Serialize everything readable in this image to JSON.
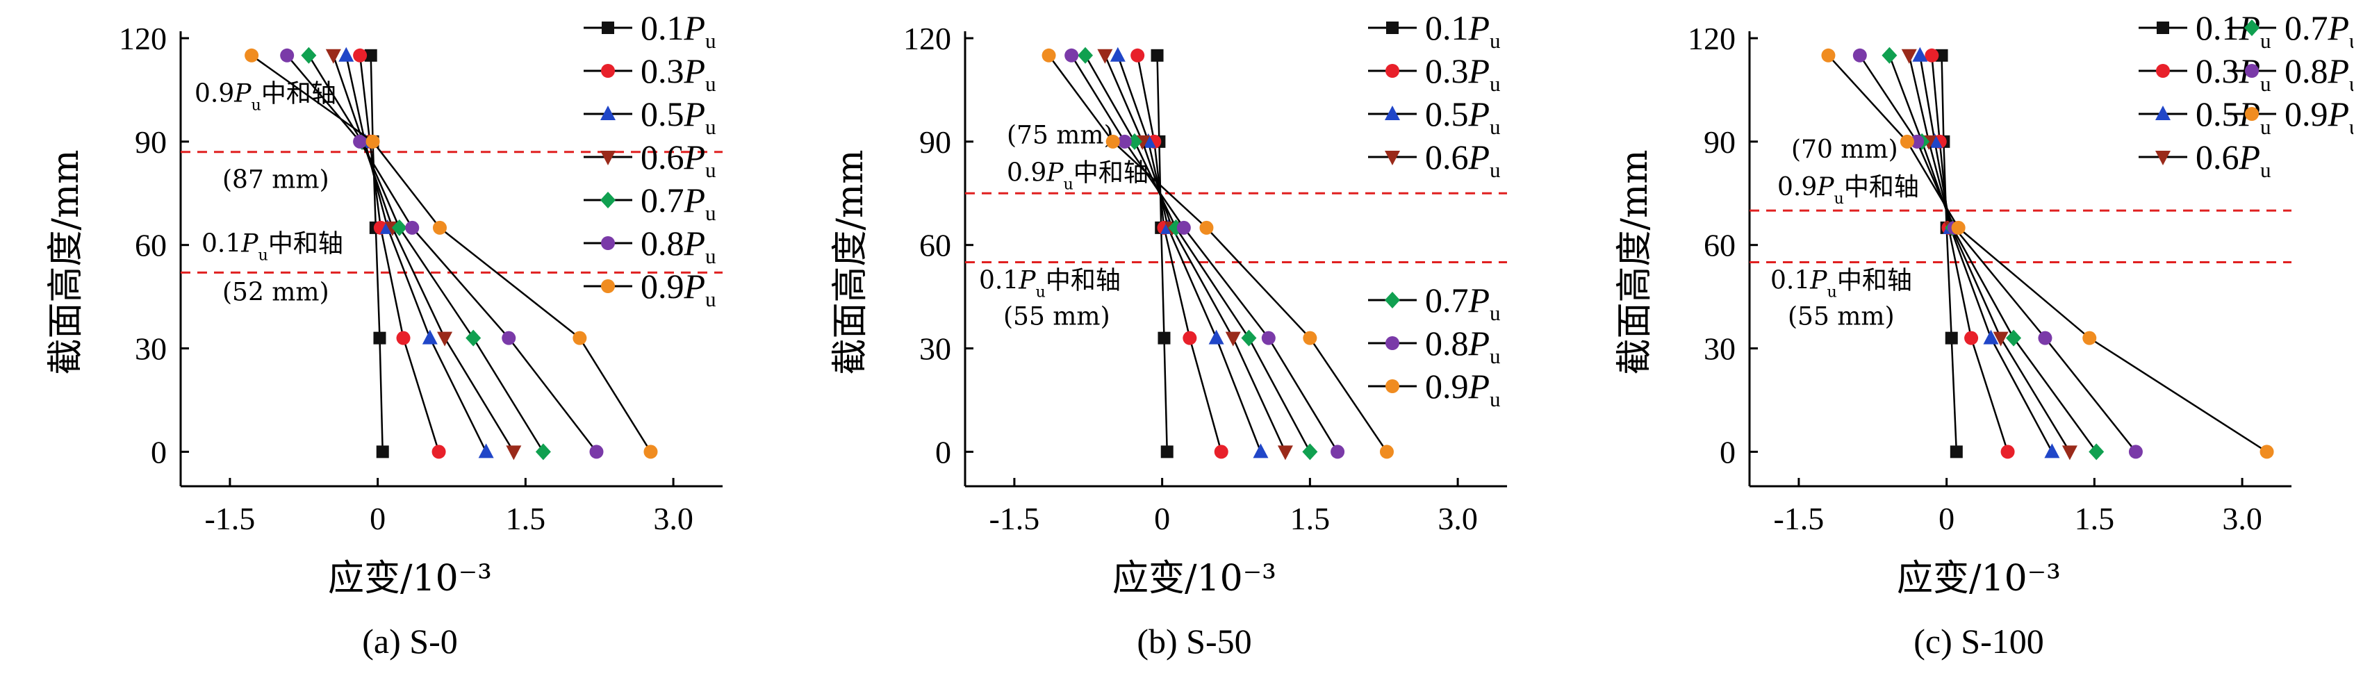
{
  "colors": {
    "0.1": "#111111",
    "0.3": "#e8202a",
    "0.5": "#2046c8",
    "0.6": "#9a2a1a",
    "0.7": "#10a050",
    "0.8": "#7a3aa8",
    "0.9": "#f08c20",
    "refline": "#e02020"
  },
  "chart_data": [
    {
      "id": "a",
      "type": "line",
      "caption": "(a) S-0",
      "xlabel": "应变/10⁻³",
      "ylabel": "截面高度/mm",
      "xlim": [
        -2.0,
        3.5
      ],
      "ylim": [
        -10,
        120
      ],
      "xticks": [
        "-1.5",
        "0",
        "1.5",
        "3.0"
      ],
      "xtick_values": [
        -1.5,
        0,
        1.5,
        3.0
      ],
      "yticks": [
        "0",
        "30",
        "60",
        "90",
        "120"
      ],
      "ytick_values": [
        0,
        30,
        60,
        90,
        120
      ],
      "y": [
        0,
        33,
        65,
        90,
        115
      ],
      "series": [
        {
          "key": "0.1",
          "marker": "square",
          "label_prefix": "0.1",
          "x": [
            0.05,
            0.02,
            -0.02,
            -0.05,
            -0.07
          ]
        },
        {
          "key": "0.3",
          "marker": "circle",
          "label_prefix": "0.3",
          "x": [
            0.62,
            0.26,
            0.03,
            -0.08,
            -0.18
          ]
        },
        {
          "key": "0.5",
          "marker": "triangle",
          "label_prefix": "0.5",
          "x": [
            1.1,
            0.53,
            0.1,
            -0.13,
            -0.32
          ]
        },
        {
          "key": "0.6",
          "marker": "tridown",
          "label_prefix": "0.6",
          "x": [
            1.38,
            0.68,
            0.15,
            -0.15,
            -0.45
          ]
        },
        {
          "key": "0.7",
          "marker": "diamond",
          "label_prefix": "0.7",
          "x": [
            1.68,
            0.97,
            0.22,
            -0.16,
            -0.7
          ]
        },
        {
          "key": "0.8",
          "marker": "circle",
          "label_prefix": "0.8",
          "x": [
            2.22,
            1.33,
            0.35,
            -0.18,
            -0.92
          ]
        },
        {
          "key": "0.9",
          "marker": "circle",
          "label_prefix": "0.9",
          "x": [
            2.77,
            2.05,
            0.63,
            -0.05,
            -1.28
          ]
        }
      ],
      "legend_groups": [
        [
          "0.1",
          "0.3",
          "0.5",
          "0.6",
          "0.7",
          "0.8",
          "0.9"
        ]
      ],
      "ref_lines": [
        {
          "y": 87,
          "label_prefix": "0.9",
          "label_suffix": "中和轴",
          "value_text": "(87 mm)"
        },
        {
          "y": 52,
          "label_prefix": "0.1",
          "label_suffix": "中和轴",
          "value_text": "(52 mm)"
        }
      ]
    },
    {
      "id": "b",
      "type": "line",
      "caption": "(b) S-50",
      "xlabel": "应变/10⁻³",
      "ylabel": "截面高度/mm",
      "xlim": [
        -2.0,
        3.5
      ],
      "ylim": [
        -10,
        120
      ],
      "xticks": [
        "-1.5",
        "0",
        "1.5",
        "3.0"
      ],
      "xtick_values": [
        -1.5,
        0,
        1.5,
        3.0
      ],
      "yticks": [
        "0",
        "30",
        "60",
        "90",
        "120"
      ],
      "ytick_values": [
        0,
        30,
        60,
        90,
        120
      ],
      "y": [
        0,
        33,
        65,
        90,
        115
      ],
      "series": [
        {
          "key": "0.1",
          "marker": "square",
          "label_prefix": "0.1",
          "x": [
            0.05,
            0.02,
            -0.01,
            -0.03,
            -0.05
          ]
        },
        {
          "key": "0.3",
          "marker": "circle",
          "label_prefix": "0.3",
          "x": [
            0.6,
            0.28,
            0.02,
            -0.08,
            -0.25
          ]
        },
        {
          "key": "0.5",
          "marker": "triangle",
          "label_prefix": "0.5",
          "x": [
            1.0,
            0.55,
            0.06,
            -0.14,
            -0.45
          ]
        },
        {
          "key": "0.6",
          "marker": "tridown",
          "label_prefix": "0.6",
          "x": [
            1.25,
            0.72,
            0.1,
            -0.2,
            -0.58
          ]
        },
        {
          "key": "0.7",
          "marker": "diamond",
          "label_prefix": "0.7",
          "x": [
            1.5,
            0.88,
            0.14,
            -0.28,
            -0.78
          ]
        },
        {
          "key": "0.8",
          "marker": "circle",
          "label_prefix": "0.8",
          "x": [
            1.78,
            1.08,
            0.22,
            -0.38,
            -0.92
          ]
        },
        {
          "key": "0.9",
          "marker": "circle",
          "label_prefix": "0.9",
          "x": [
            2.28,
            1.5,
            0.45,
            -0.5,
            -1.15
          ]
        }
      ],
      "legend_groups": [
        [
          "0.1",
          "0.3",
          "0.5",
          "0.6"
        ],
        [
          "0.7",
          "0.8",
          "0.9"
        ]
      ],
      "ref_lines": [
        {
          "y": 75,
          "label_prefix": "0.9",
          "label_suffix": "中和轴",
          "value_text": "(75 mm)"
        },
        {
          "y": 55,
          "label_prefix": "0.1",
          "label_suffix": "中和轴",
          "value_text": "(55 mm)"
        }
      ]
    },
    {
      "id": "c",
      "type": "line",
      "caption": "(c) S-100",
      "xlabel": "应变/10⁻³",
      "ylabel": "截面高度/mm",
      "xlim": [
        -2.0,
        3.5
      ],
      "ylim": [
        -10,
        120
      ],
      "xticks": [
        "-1.5",
        "0",
        "1.5",
        "3.0"
      ],
      "xtick_values": [
        -1.5,
        0,
        1.5,
        3.0
      ],
      "yticks": [
        "0",
        "30",
        "60",
        "90",
        "120"
      ],
      "ytick_values": [
        0,
        30,
        60,
        90,
        120
      ],
      "y": [
        0,
        33,
        65,
        90,
        115
      ],
      "series": [
        {
          "key": "0.1",
          "marker": "square",
          "label_prefix": "0.1",
          "x": [
            0.1,
            0.05,
            0.0,
            -0.03,
            -0.05
          ]
        },
        {
          "key": "0.3",
          "marker": "circle",
          "label_prefix": "0.3",
          "x": [
            0.62,
            0.25,
            0.02,
            -0.07,
            -0.15
          ]
        },
        {
          "key": "0.5",
          "marker": "triangle",
          "label_prefix": "0.5",
          "x": [
            1.07,
            0.45,
            0.04,
            -0.12,
            -0.27
          ]
        },
        {
          "key": "0.6",
          "marker": "tridown",
          "label_prefix": "0.6",
          "x": [
            1.25,
            0.55,
            0.05,
            -0.18,
            -0.38
          ]
        },
        {
          "key": "0.7",
          "marker": "diamond",
          "label_prefix": "0.7",
          "x": [
            1.52,
            0.68,
            0.06,
            -0.25,
            -0.58
          ]
        },
        {
          "key": "0.8",
          "marker": "circle",
          "label_prefix": "0.8",
          "x": [
            1.92,
            1.0,
            0.08,
            -0.3,
            -0.88
          ]
        },
        {
          "key": "0.9",
          "marker": "circle",
          "label_prefix": "0.9",
          "x": [
            3.25,
            1.45,
            0.12,
            -0.4,
            -1.2
          ]
        }
      ],
      "legend_groups": [
        [
          "0.1",
          "0.3",
          "0.5",
          "0.6"
        ],
        [
          "0.7",
          "0.8",
          "0.9"
        ]
      ],
      "ref_lines": [
        {
          "y": 70,
          "label_prefix": "0.9",
          "label_suffix": "中和轴",
          "value_text": "(70 mm)"
        },
        {
          "y": 55,
          "label_prefix": "0.1",
          "label_suffix": "中和轴",
          "value_text": "(55 mm)"
        }
      ]
    }
  ]
}
